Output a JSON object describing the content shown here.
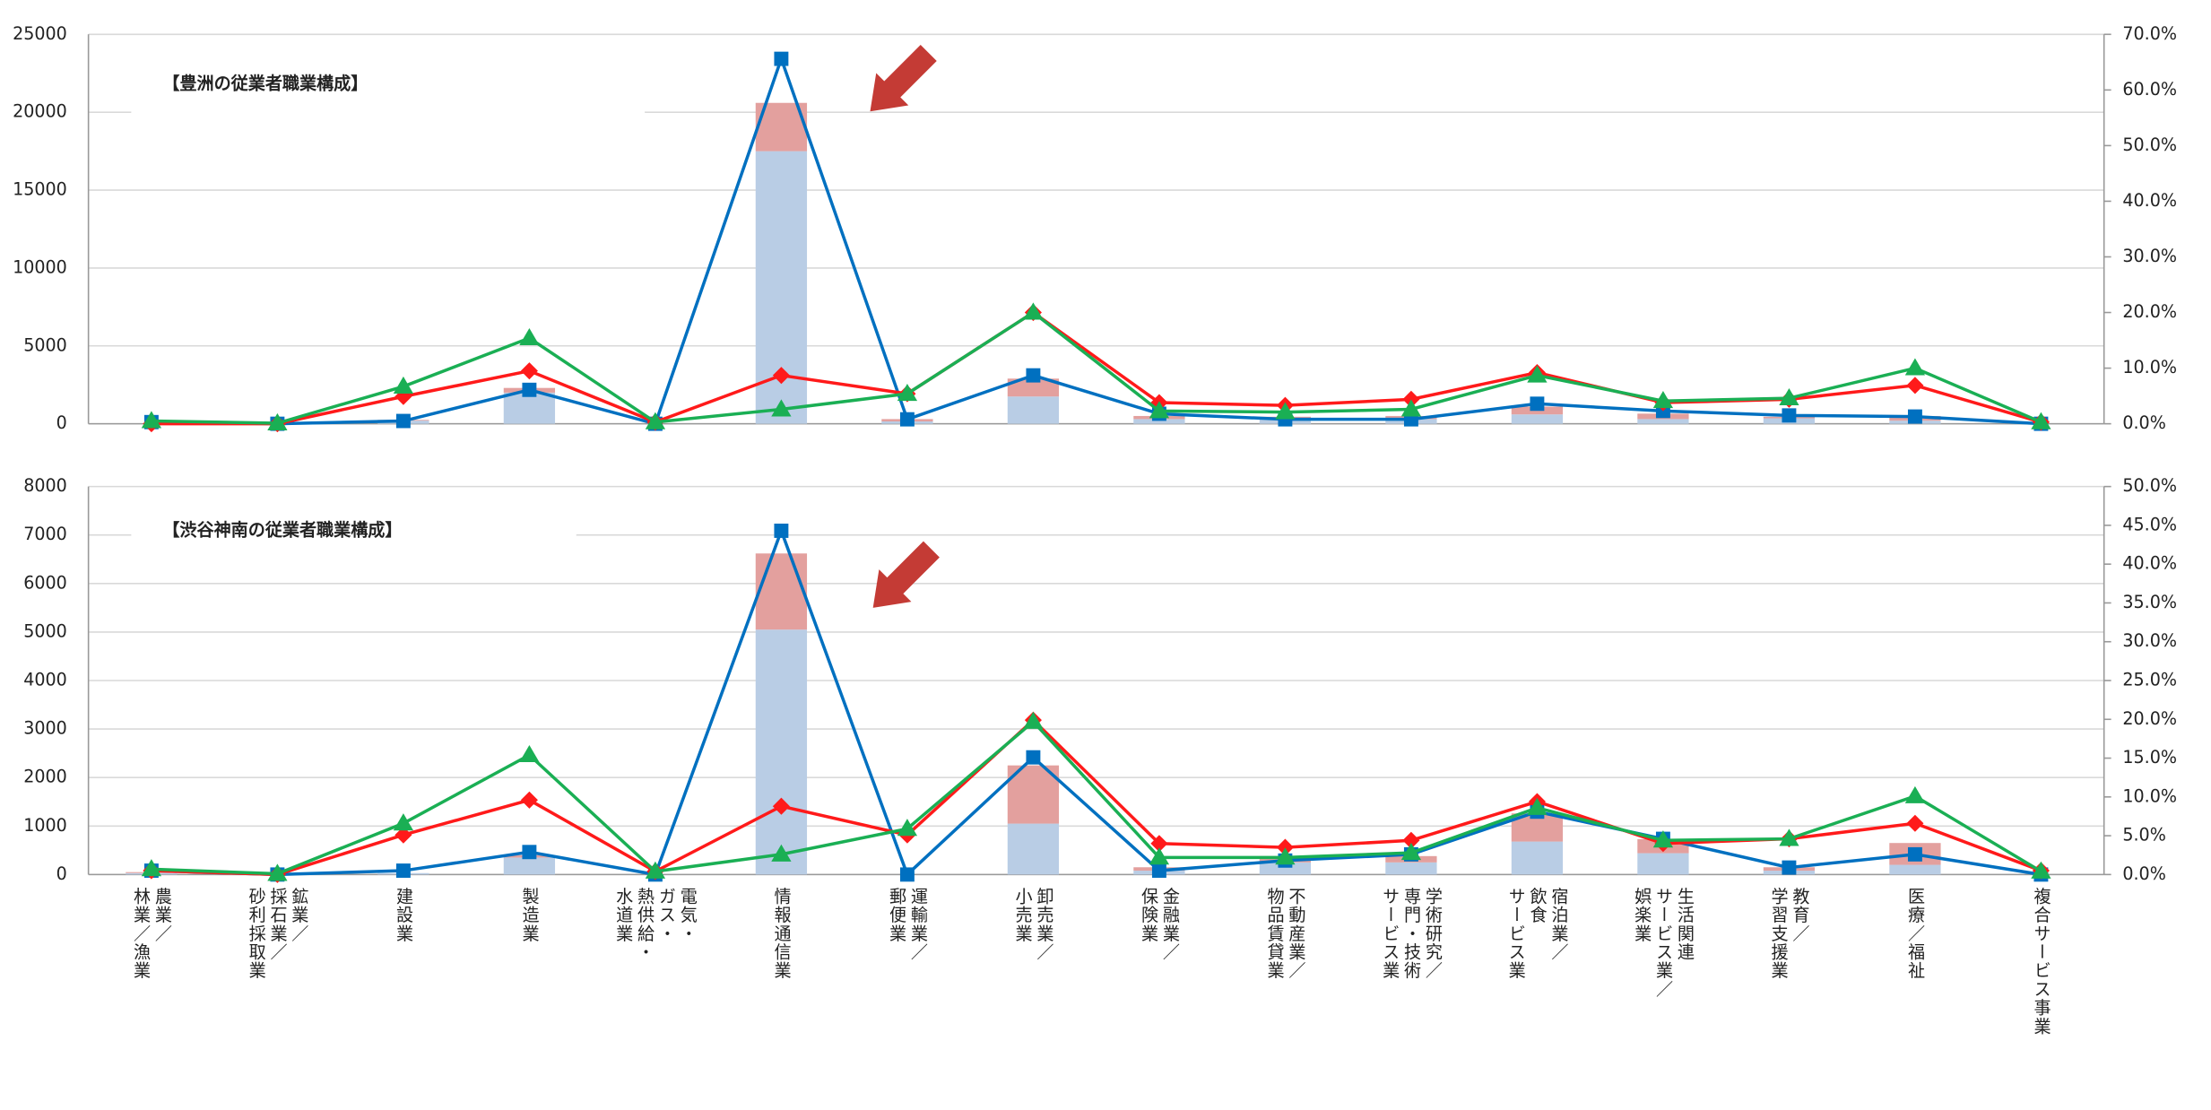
{
  "chart_data": [
    {
      "type": "combo",
      "title": "【豊洲の従業者職業構成】",
      "ylim": [
        0,
        25000
      ],
      "yticks": [
        0,
        5000,
        10000,
        15000,
        20000,
        25000
      ],
      "y2lim": [
        0,
        70
      ],
      "y2ticks": [
        {
          "value": 0,
          "label": "0.0%"
        },
        {
          "value": 10,
          "label": "10.0%"
        },
        {
          "value": 20,
          "label": "20.0%"
        },
        {
          "value": 30,
          "label": "30.0%"
        },
        {
          "value": 40,
          "label": "40.0%"
        },
        {
          "value": 50,
          "label": "50.0%"
        },
        {
          "value": 60,
          "label": "60.0%"
        },
        {
          "value": 70,
          "label": "70.0%"
        }
      ],
      "grid": true,
      "series": [
        {
          "kind": "bar",
          "color": "#b9cde5",
          "values": [
            0,
            0,
            200,
            2000,
            0,
            17500,
            150,
            1750,
            300,
            300,
            300,
            600,
            300,
            350,
            200,
            0
          ]
        },
        {
          "kind": "bar",
          "color": "#e3a09e",
          "values": [
            0,
            0,
            50,
            300,
            0,
            3100,
            150,
            1150,
            200,
            150,
            200,
            500,
            350,
            100,
            300,
            0
          ]
        },
        {
          "kind": "line",
          "marker": "square",
          "axis": "y2",
          "color": "#0070c0",
          "values": [
            0.3,
            0,
            0.5,
            6.1,
            0,
            65.6,
            0.8,
            8.7,
            1.8,
            0.8,
            0.8,
            3.6,
            2.3,
            1.5,
            1.3,
            0
          ]
        },
        {
          "kind": "line",
          "marker": "diamond",
          "axis": "y2",
          "color": "#ff1a1a",
          "values": [
            0,
            0,
            4.9,
            9.5,
            0.3,
            8.7,
            5.4,
            20,
            3.8,
            3.3,
            4.4,
            9.2,
            3.8,
            4.4,
            6.9,
            0.3
          ]
        },
        {
          "kind": "line",
          "marker": "triangle",
          "axis": "y2",
          "color": "#1aaf54",
          "values": [
            0.5,
            0.1,
            6.7,
            15.4,
            0.3,
            2.6,
            5.4,
            20,
            2.3,
            2.1,
            2.6,
            8.7,
            4.1,
            4.6,
            10,
            0.3
          ]
        }
      ]
    },
    {
      "type": "combo",
      "title": "【渋谷神南の従業者職業構成】",
      "categories": [
        "農業／\n林業／漁業",
        "鉱業／\n採石業／\n砂利採取業",
        "建設業",
        "製造業",
        "電気・\nガス・\n熱供給・\n水道業",
        "情報通信業",
        "運輸業／\n郵便業",
        "卸売業／\n小売業",
        "金融業／\n保険業",
        "不動産業／\n物品賃貸業",
        "学術研究／\n専門・技術\nサービス業",
        "宿泊業／\n飲食\nサービス業",
        "生活関連\nサービス業／\n娯楽業",
        "教育／\n学習支援業",
        "医療／福祉",
        "複合サービス事業"
      ],
      "ylim": [
        0,
        8000
      ],
      "yticks": [
        0,
        1000,
        2000,
        3000,
        4000,
        5000,
        6000,
        7000,
        8000
      ],
      "y2lim": [
        0,
        50
      ],
      "y2ticks": [
        {
          "value": 0,
          "label": "0.0%"
        },
        {
          "value": 5,
          "label": "5.0%"
        },
        {
          "value": 10,
          "label": "10.0%"
        },
        {
          "value": 15,
          "label": "15.0%"
        },
        {
          "value": 20,
          "label": "20.0%"
        },
        {
          "value": 25,
          "label": "25.0%"
        },
        {
          "value": 30,
          "label": "30.0%"
        },
        {
          "value": 35,
          "label": "35.0%"
        },
        {
          "value": 40,
          "label": "40.0%"
        },
        {
          "value": 45,
          "label": "45.0%"
        },
        {
          "value": 50,
          "label": "50.0%"
        }
      ],
      "grid": true,
      "series": [
        {
          "kind": "bar",
          "color": "#b9cde5",
          "values": [
            30,
            0,
            30,
            350,
            0,
            5050,
            0,
            1050,
            80,
            250,
            250,
            680,
            440,
            80,
            200,
            0
          ]
        },
        {
          "kind": "bar",
          "color": "#e3a09e",
          "values": [
            20,
            0,
            0,
            50,
            0,
            1570,
            0,
            1200,
            70,
            130,
            130,
            580,
            290,
            70,
            450,
            0
          ]
        },
        {
          "kind": "line",
          "marker": "square",
          "axis": "y2",
          "color": "#0070c0",
          "values": [
            0.5,
            0,
            0.5,
            2.9,
            0,
            44.3,
            0,
            15.1,
            0.5,
            1.8,
            2.6,
            8.1,
            4.6,
            0.9,
            2.6,
            0
          ]
        },
        {
          "kind": "line",
          "marker": "diamond",
          "axis": "y2",
          "color": "#ff1a1a",
          "values": [
            0.5,
            0,
            5.1,
            9.6,
            0.4,
            8.8,
            5.1,
            19.9,
            4.0,
            3.5,
            4.4,
            9.4,
            4.0,
            4.6,
            6.6,
            0.5
          ]
        },
        {
          "kind": "line",
          "marker": "triangle",
          "axis": "y2",
          "color": "#1aaf54",
          "values": [
            0.7,
            0.1,
            6.6,
            15.4,
            0.4,
            2.6,
            5.9,
            19.7,
            2.2,
            2.2,
            2.8,
            8.6,
            4.4,
            4.6,
            10.1,
            0.4
          ]
        }
      ]
    }
  ]
}
